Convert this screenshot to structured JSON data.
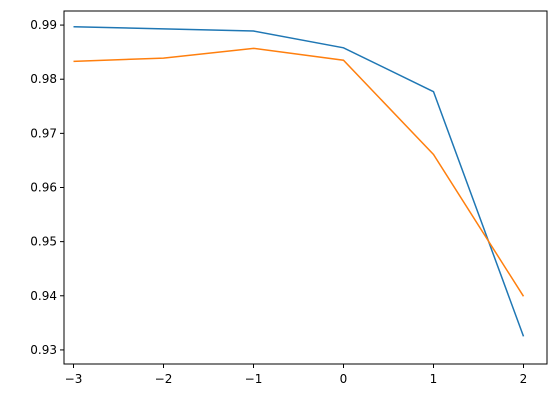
{
  "chart_data": {
    "type": "line",
    "x": [
      -3,
      -2,
      -1,
      0,
      1,
      2
    ],
    "series": [
      {
        "color": "#1f77b4",
        "values": [
          0.9897,
          0.9893,
          0.9889,
          0.9858,
          0.9777,
          0.9325
        ]
      },
      {
        "color": "#ff7f0e",
        "values": [
          0.9833,
          0.9839,
          0.9857,
          0.9835,
          0.9661,
          0.9399
        ]
      }
    ],
    "xlim": [
      -3.25,
      2.25
    ],
    "xticks": [
      -3,
      -2,
      -1,
      0,
      1,
      2
    ],
    "ylim": [
      0.9274,
      0.9926
    ],
    "yticks": [
      0.93,
      0.94,
      0.95,
      0.96,
      0.97,
      0.98,
      0.99
    ],
    "grid": false
  }
}
